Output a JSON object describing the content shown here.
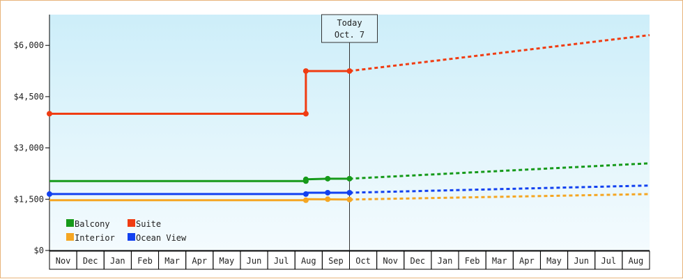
{
  "chart_data": {
    "type": "line",
    "title": "",
    "xlabel": "",
    "ylabel": "",
    "ylim": [
      0,
      6900
    ],
    "yticks": [
      {
        "value": 0,
        "label": "$0"
      },
      {
        "value": 1500,
        "label": "$1,500"
      },
      {
        "value": 3000,
        "label": "$3,000"
      },
      {
        "value": 4500,
        "label": "$4,500"
      },
      {
        "value": 6000,
        "label": "$6,000"
      }
    ],
    "months": [
      "Nov",
      "Dec",
      "Jan",
      "Feb",
      "Mar",
      "Apr",
      "May",
      "Jun",
      "Jul",
      "Aug",
      "Sep",
      "Oct",
      "Nov",
      "Dec",
      "Jan",
      "Feb",
      "Mar",
      "Apr",
      "May",
      "Jun",
      "Jul",
      "Aug"
    ],
    "xlim": [
      0,
      22
    ],
    "today": {
      "x": 11.0,
      "label_line1": "Today",
      "label_line2": "Oct. 7"
    },
    "legend": {
      "placement": "bottom-left"
    },
    "background": {
      "top": "#cdeef9",
      "bottom": "#f4fbfe"
    },
    "series": [
      {
        "name": "Suite",
        "color": "#f03c12",
        "history": [
          [
            0.0,
            4000
          ],
          [
            9.4,
            4000
          ],
          [
            9.4,
            5250
          ],
          [
            11.0,
            5250
          ]
        ],
        "history_markers": [
          [
            0.0,
            4000
          ],
          [
            9.4,
            4000
          ],
          [
            9.4,
            5250
          ],
          [
            11.0,
            5250
          ]
        ],
        "forecast": [
          [
            11.0,
            5250
          ],
          [
            22.0,
            6300
          ]
        ]
      },
      {
        "name": "Balcony",
        "color": "#169a1a",
        "history": [
          [
            0.0,
            2030
          ],
          [
            9.4,
            2030
          ],
          [
            9.4,
            2080
          ],
          [
            10.2,
            2100
          ],
          [
            11.0,
            2100
          ]
        ],
        "history_markers": [
          [
            9.4,
            2030
          ],
          [
            9.4,
            2080
          ],
          [
            10.2,
            2100
          ],
          [
            11.0,
            2100
          ]
        ],
        "forecast": [
          [
            11.0,
            2100
          ],
          [
            22.0,
            2550
          ]
        ]
      },
      {
        "name": "Ocean View",
        "color": "#1241f0",
        "history": [
          [
            0.0,
            1650
          ],
          [
            9.4,
            1650
          ],
          [
            9.4,
            1690
          ],
          [
            11.0,
            1690
          ]
        ],
        "history_markers": [
          [
            0.0,
            1650
          ],
          [
            9.4,
            1650
          ],
          [
            10.2,
            1690
          ],
          [
            11.0,
            1690
          ]
        ],
        "forecast": [
          [
            11.0,
            1690
          ],
          [
            22.0,
            1900
          ]
        ]
      },
      {
        "name": "Interior",
        "color": "#f5a623",
        "history": [
          [
            0.0,
            1470
          ],
          [
            9.4,
            1470
          ],
          [
            9.4,
            1500
          ],
          [
            11.0,
            1490
          ]
        ],
        "history_markers": [
          [
            9.4,
            1470
          ],
          [
            10.2,
            1500
          ],
          [
            11.0,
            1490
          ]
        ],
        "forecast": [
          [
            11.0,
            1490
          ],
          [
            22.0,
            1650
          ]
        ]
      }
    ],
    "legend_entries": [
      {
        "name": "Balcony",
        "color": "#169a1a",
        "row": 0,
        "col": 0
      },
      {
        "name": "Suite",
        "color": "#f03c12",
        "row": 0,
        "col": 1
      },
      {
        "name": "Interior",
        "color": "#f5a623",
        "row": 1,
        "col": 0
      },
      {
        "name": "Ocean View",
        "color": "#1241f0",
        "row": 1,
        "col": 1
      }
    ]
  }
}
